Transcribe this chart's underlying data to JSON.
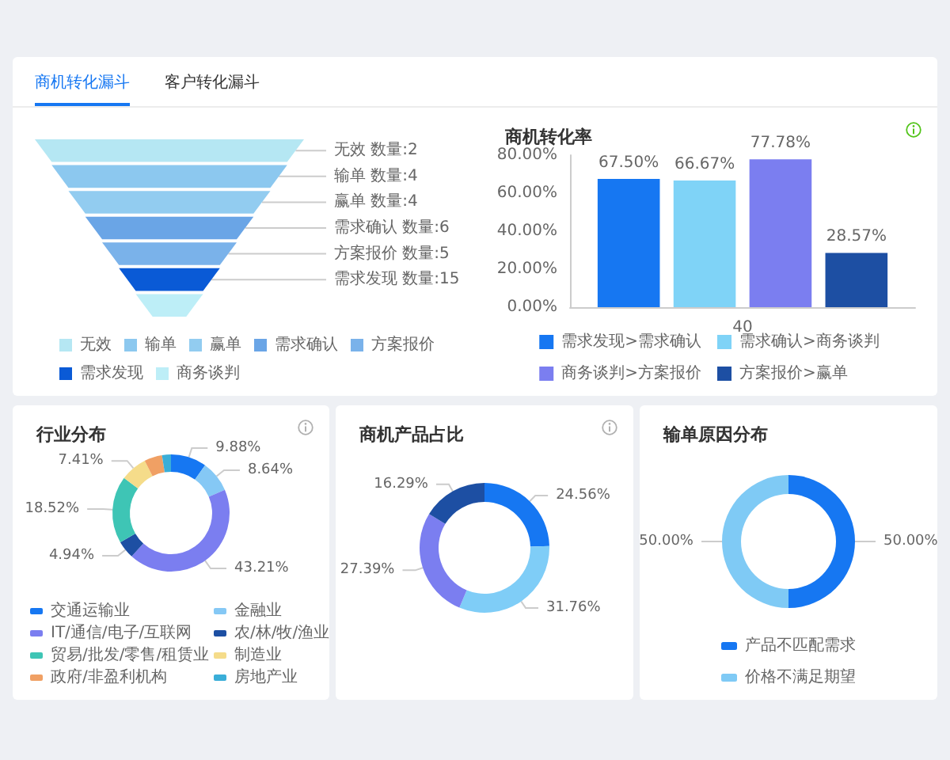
{
  "chart_data": [
    {
      "type": "other",
      "annotations": [
        "商机转化漏斗",
        "客户转化漏斗"
      ]
    },
    {
      "type": "other",
      "series": [
        {
          "name": "无效",
          "color": "#b5e7f3"
        },
        {
          "name": "输单",
          "color": "#8cc8ef"
        },
        {
          "name": "赢单",
          "color": "#92ccf0"
        },
        {
          "name": "需求确认",
          "color": "#6aa5e6"
        },
        {
          "name": "方案报价",
          "color": "#7ab2ea"
        },
        {
          "name": "需求发现",
          "color": "#0a5ad6"
        },
        {
          "name": "商务谈判",
          "color": "#bdeef7"
        }
      ],
      "value_labels": [
        "无效 数量:2",
        "输单 数量:4",
        "赢单 数量:4",
        "需求确认 数量:6",
        "方案报价 数量:5",
        "需求发现 数量:15",
        null
      ],
      "legend": "bottom"
    },
    {
      "type": "bar",
      "title": "商机转化率",
      "categories": [
        "40"
      ],
      "series": [
        {
          "name": "需求发现>需求确认",
          "color": "#1677f2",
          "values": [
            67.5
          ],
          "value_labels": [
            "67.50%"
          ]
        },
        {
          "name": "需求确认>商务谈判",
          "color": "#7fd3f7",
          "values": [
            66.67
          ],
          "value_labels": [
            "66.67%"
          ]
        },
        {
          "name": "商务谈判>方案报价",
          "color": "#7b7ef0",
          "values": [
            77.78
          ],
          "value_labels": [
            "77.78%"
          ]
        },
        {
          "name": "方案报价>赢单",
          "color": "#1d4fa3",
          "values": [
            28.57
          ],
          "value_labels": [
            "28.57%"
          ]
        }
      ],
      "ylim": [
        0,
        80
      ],
      "yticks": [
        {
          "value": 0,
          "label": "0.00%"
        },
        {
          "value": 20,
          "label": "20.00%"
        },
        {
          "value": 40,
          "label": "40.00%"
        },
        {
          "value": 60,
          "label": "60.00%"
        },
        {
          "value": 80,
          "label": "80.00%"
        }
      ],
      "legend": "bottom"
    },
    {
      "type": "donut",
      "title": "行业分布",
      "categories": [
        "交通运输业",
        "金融业",
        "IT/通信/电子/互联网",
        "农/林/牧/渔业",
        "贸易/批发/零售/租赁业",
        "制造业",
        "政府/非盈利机构",
        "房地产业"
      ],
      "values": [
        9.88,
        8.64,
        43.21,
        4.94,
        18.52,
        7.41,
        4.94,
        2.47
      ],
      "value_labels": [
        "9.88%",
        "8.64%",
        "43.21%",
        "4.94%",
        "18.52%",
        "7.41%",
        null,
        null
      ],
      "colors": [
        "#1677f2",
        "#85c8f5",
        "#7b7ef0",
        "#1d4fa3",
        "#3ec5b5",
        "#f5dc8a",
        "#f0a064",
        "#3aaed8"
      ],
      "legend": "bottom"
    },
    {
      "type": "donut",
      "title": "商机产品占比",
      "categories": [
        null,
        null,
        null,
        null
      ],
      "values": [
        24.56,
        31.76,
        27.39,
        16.29
      ],
      "value_labels": [
        "24.56%",
        "31.76%",
        "27.39%",
        "16.29%"
      ],
      "colors": [
        "#1677f2",
        "#7fcdf7",
        "#7b7ef0",
        "#1d4fa3"
      ]
    },
    {
      "type": "donut",
      "title": "输单原因分布",
      "categories": [
        "产品不匹配需求",
        "价格不满足期望"
      ],
      "values": [
        50,
        50
      ],
      "value_labels": [
        "50.00%",
        "50.00%"
      ],
      "colors": [
        "#1677f2",
        "#7fcaf5"
      ],
      "legend": "bottom"
    }
  ]
}
